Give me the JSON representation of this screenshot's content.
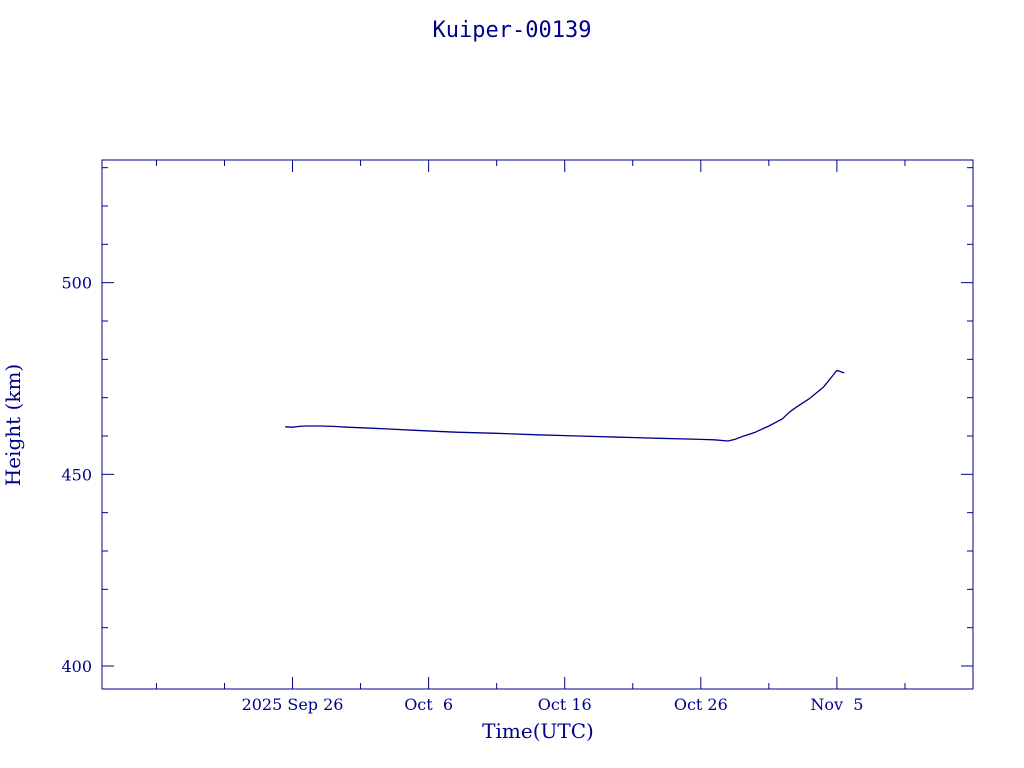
{
  "chart_data": {
    "type": "line",
    "title": "Kuiper-00139",
    "xlabel": "Time(UTC)",
    "ylabel": "Height (km)",
    "xlim": [
      "2025-09-12",
      "2025-11-15"
    ],
    "ylim": [
      394,
      532
    ],
    "x_ticks": [
      {
        "date": "2025-09-26",
        "label": "2025 Sep 26"
      },
      {
        "date": "2025-10-06",
        "label": "Oct  6"
      },
      {
        "date": "2025-10-16",
        "label": "Oct 16"
      },
      {
        "date": "2025-10-26",
        "label": "Oct 26"
      },
      {
        "date": "2025-11-05",
        "label": "Nov  5"
      }
    ],
    "x_minor_step_days": 5,
    "y_ticks": [
      {
        "value": 400,
        "label": "400"
      },
      {
        "value": 450,
        "label": "450"
      },
      {
        "value": 500,
        "label": "500"
      }
    ],
    "y_minor_step": 10,
    "color": "#00008b",
    "grid": false,
    "series": [
      {
        "x": [
          "2025-09-25T12:00",
          "2025-09-26T00:00",
          "2025-09-26T12:00",
          "2025-09-27T00:00",
          "2025-09-28T00:00",
          "2025-09-29T00:00",
          "2025-09-30T00:00",
          "2025-10-02T00:00",
          "2025-10-05T00:00",
          "2025-10-08T00:00",
          "2025-10-11T00:00",
          "2025-10-14T00:00",
          "2025-10-17T00:00",
          "2025-10-20T00:00",
          "2025-10-23T00:00",
          "2025-10-26T00:00",
          "2025-10-27T00:00",
          "2025-10-28T00:00",
          "2025-10-28T12:00",
          "2025-10-29T00:00",
          "2025-10-30T00:00",
          "2025-10-31T00:00",
          "2025-11-01T00:00",
          "2025-11-01T12:00",
          "2025-11-02T00:00",
          "2025-11-03T00:00",
          "2025-11-04T00:00",
          "2025-11-04T12:00",
          "2025-11-05T00:00",
          "2025-11-05T12:00"
        ],
        "y": [
          462.4,
          462.3,
          462.5,
          462.6,
          462.6,
          462.5,
          462.3,
          462.0,
          461.5,
          461.0,
          460.7,
          460.3,
          460.0,
          459.7,
          459.4,
          459.1,
          459.0,
          458.7,
          459.1,
          459.8,
          461.0,
          462.6,
          464.5,
          466.2,
          467.5,
          469.8,
          472.7,
          474.9,
          477.1,
          476.5
        ]
      }
    ]
  }
}
